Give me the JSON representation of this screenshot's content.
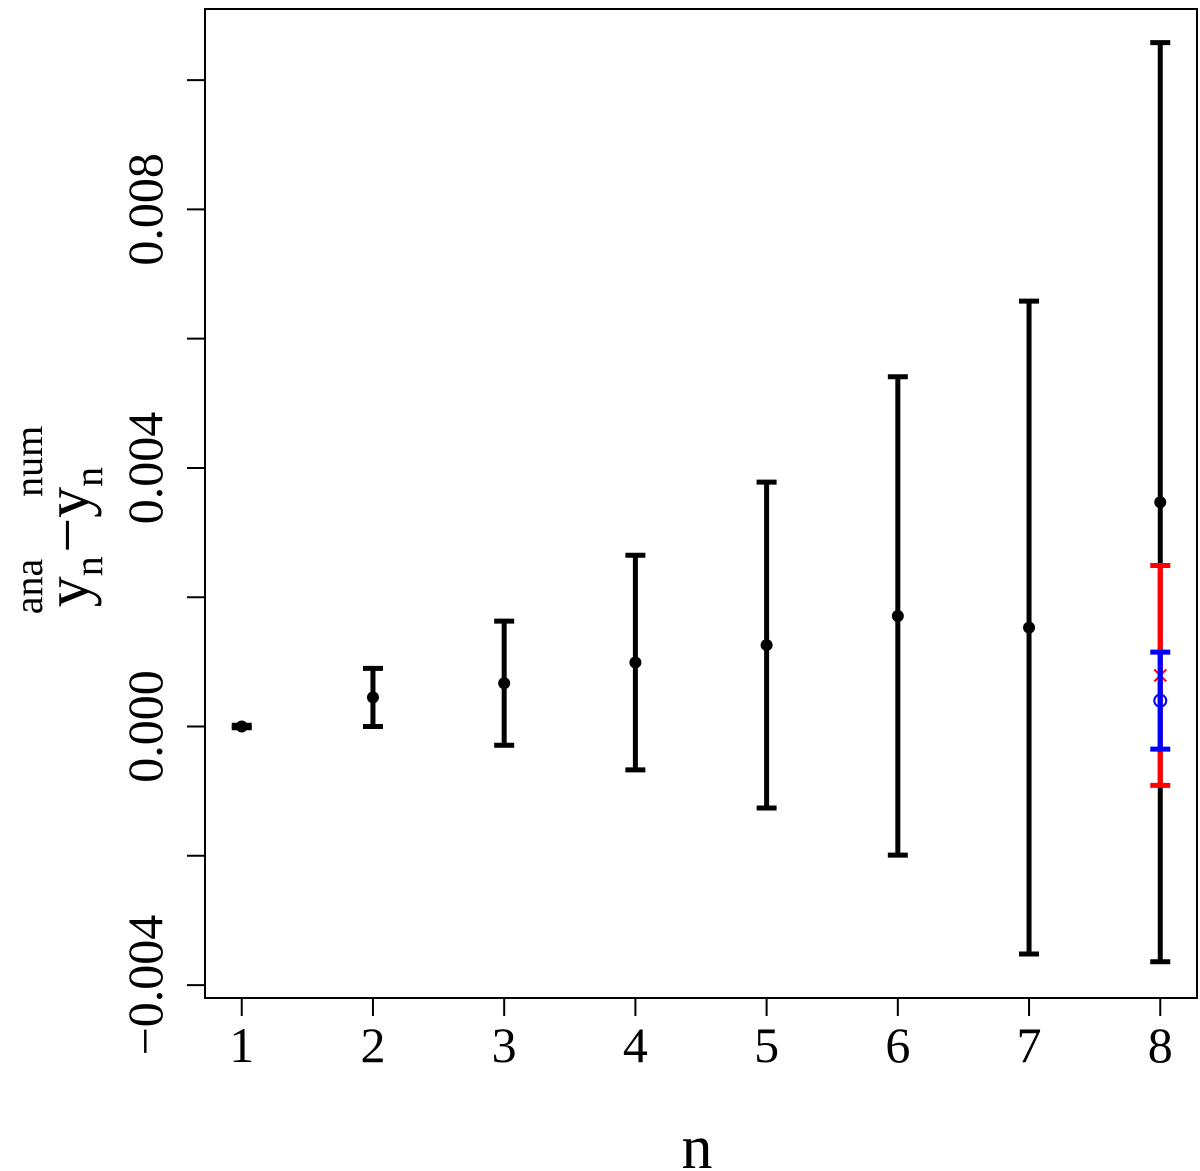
{
  "chart_data": {
    "type": "errorbar",
    "xlabel": "n",
    "ylabel": {
      "base1": "y",
      "sub1": "n",
      "sup1": "ana",
      "base2": "−y",
      "sub2": "n",
      "sup2": "num"
    },
    "xlim": [
      0.72,
      8.28
    ],
    "ylim": [
      -0.0042,
      0.0111
    ],
    "xticks": [
      1,
      2,
      3,
      4,
      5,
      6,
      7,
      8
    ],
    "yticks": [
      {
        "value": -0.004,
        "label": "−0.004"
      },
      {
        "value": 0,
        "label": "0.000"
      },
      {
        "value": 0.004,
        "label": "0.004"
      },
      {
        "value": 0.008,
        "label": "0.008"
      }
    ],
    "yticks_unlabeled": [
      -0.002,
      0.002,
      0.006,
      0.01
    ],
    "series": [
      {
        "color": "#000000",
        "marker": "dot",
        "x": [
          1,
          2,
          3,
          4,
          5,
          6,
          7,
          8
        ],
        "values": [
          0,
          0.00045,
          0.00067,
          0.00099,
          0.00126,
          0.00171,
          0.00153,
          0.00347
        ],
        "errors": [
          2e-05,
          0.00045,
          0.00096,
          0.00166,
          0.00252,
          0.0037,
          0.00505,
          0.00711
        ]
      },
      {
        "color": "#ff0000",
        "marker": "cross",
        "x": [
          8
        ],
        "values": [
          0.00079
        ],
        "errors": [
          0.0017
        ]
      },
      {
        "color": "#0000ff",
        "marker": "circle",
        "x": [
          8
        ],
        "values": [
          0.0004
        ],
        "errors": [
          0.00075
        ]
      }
    ]
  }
}
